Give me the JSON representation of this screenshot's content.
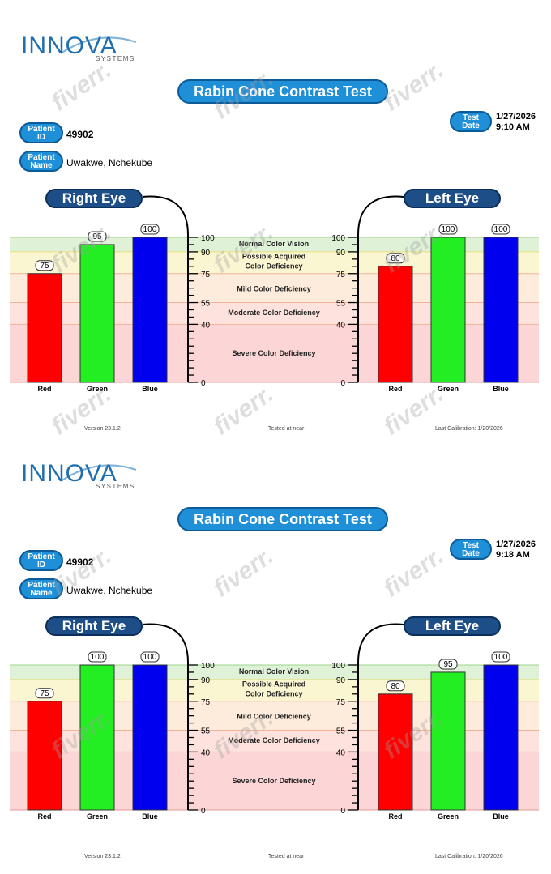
{
  "reports": [
    {
      "logo": {
        "name": "INNOVA",
        "sub": "SYSTEMS"
      },
      "title": "Rabin Cone Contrast Test",
      "patient_id_label": [
        "Patient",
        "ID"
      ],
      "patient_id": "49902",
      "patient_name_label": [
        "Patient",
        "Name"
      ],
      "patient_name": "Uwakwe, Nchekube",
      "test_date_label": [
        "Test",
        "Date"
      ],
      "test_date": "1/27/2026",
      "test_time": "9:10 AM",
      "right_eye_label": "Right Eye",
      "left_eye_label": "Left Eye",
      "footer": {
        "version": "Version 23.1.2",
        "tested": "Tested at near",
        "calibration": "Last Calibration: 1/20/2026"
      }
    },
    {
      "logo": {
        "name": "INNOVA",
        "sub": "SYSTEMS"
      },
      "title": "Rabin Cone Contrast Test",
      "patient_id_label": [
        "Patient",
        "ID"
      ],
      "patient_id": "49902",
      "patient_name_label": [
        "Patient",
        "Name"
      ],
      "patient_name": "Uwakwe, Nchekube",
      "test_date_label": [
        "Test",
        "Date"
      ],
      "test_date": "1/27/2026",
      "test_time": "9:18 AM",
      "right_eye_label": "Right Eye",
      "left_eye_label": "Left Eye",
      "footer": {
        "version": "Version 23.1.2",
        "tested": "Tested at near",
        "calibration": "Last Calibration: 1/20/2026"
      }
    }
  ],
  "chart_data": [
    {
      "type": "bar",
      "categories": [
        "Red",
        "Green",
        "Blue"
      ],
      "series": [
        {
          "name": "Right Eye",
          "values": [
            75,
            95,
            100
          ]
        },
        {
          "name": "Left Eye",
          "values": [
            80,
            100,
            100
          ]
        }
      ],
      "ylim": [
        0,
        100
      ],
      "yticks": [
        0,
        40,
        55,
        75,
        90,
        100
      ],
      "zones": [
        {
          "label": "Normal Color Vision",
          "from": 90,
          "to": 100,
          "color": "#dff2d8"
        },
        {
          "label": "Possible Acquired Color Deficiency",
          "from": 75,
          "to": 90,
          "color": "#fbf6d2"
        },
        {
          "label": "Mild Color Deficiency",
          "from": 55,
          "to": 75,
          "color": "#fdecdc"
        },
        {
          "label": "Moderate Color Deficiency",
          "from": 40,
          "to": 55,
          "color": "#fde2de"
        },
        {
          "label": "Severe Color Deficiency",
          "from": 0,
          "to": 40,
          "color": "#fcd6d6"
        }
      ],
      "bar_colors": [
        "#ff0000",
        "#22ee22",
        "#0000ee"
      ]
    },
    {
      "type": "bar",
      "categories": [
        "Red",
        "Green",
        "Blue"
      ],
      "series": [
        {
          "name": "Right Eye",
          "values": [
            75,
            100,
            100
          ]
        },
        {
          "name": "Left Eye",
          "values": [
            80,
            95,
            100
          ]
        }
      ],
      "ylim": [
        0,
        100
      ],
      "yticks": [
        0,
        40,
        55,
        75,
        90,
        100
      ],
      "zones": [
        {
          "label": "Normal Color Vision",
          "from": 90,
          "to": 100,
          "color": "#dff2d8"
        },
        {
          "label": "Possible Acquired Color Deficiency",
          "from": 75,
          "to": 90,
          "color": "#fbf6d2"
        },
        {
          "label": "Mild Color Deficiency",
          "from": 55,
          "to": 75,
          "color": "#fdecdc"
        },
        {
          "label": "Moderate Color Deficiency",
          "from": 40,
          "to": 55,
          "color": "#fde2de"
        },
        {
          "label": "Severe Color Deficiency",
          "from": 0,
          "to": 40,
          "color": "#fcd6d6"
        }
      ],
      "bar_colors": [
        "#ff0000",
        "#22ee22",
        "#0000ee"
      ]
    }
  ],
  "watermark": "fiverr."
}
